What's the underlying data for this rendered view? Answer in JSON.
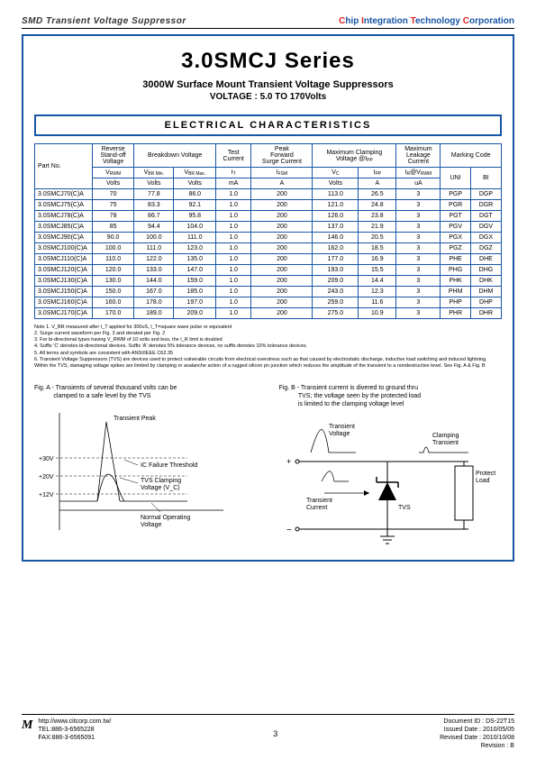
{
  "header": {
    "left": "SMD Transient Voltage Suppressor",
    "right": {
      "c": "C",
      "hip": "hip ",
      "i": "I",
      "ntegration": "ntegration ",
      "t": "T",
      "echnology": "echnology ",
      "c2": "C",
      "orporation": "orporation"
    }
  },
  "title": "3.0SMCJ Series",
  "subtitle": "3000W Surface Mount Transient Voltage Suppressors",
  "subtitle2": "VOLTAGE : 5.0 TO 170Volts",
  "section": "ELECTRICAL CHARACTERISTICS",
  "table": {
    "colgroup1": [
      "Part No.",
      "Reverse\nStand-off\nVoltage",
      "Breakdown Voltage",
      "Test\nCurrent",
      "Peak\nForward\nSurge Current",
      "Maximum Clamping\nVoltage @I",
      "Maximum\nLeakage\nCurrent",
      "Marking Code"
    ],
    "colsym": [
      "V",
      "V",
      "V",
      "I",
      "I",
      "V",
      "I",
      "I",
      "",
      ""
    ],
    "colsub": [
      "RWM",
      "BR Min.",
      "BR Max.",
      "T",
      "FSM",
      "C",
      "PP",
      "R",
      "",
      ""
    ],
    "colext": [
      "",
      "",
      "",
      "",
      "",
      "",
      "",
      "@V",
      "",
      " "
    ],
    "colunit": [
      "Volts",
      "Volts",
      "Volts",
      "mA",
      "A",
      "Volts",
      "A",
      "uA",
      "UNI",
      "BI"
    ],
    "rows": [
      [
        "3.0SMCJ70(C)A",
        "70",
        "77.8",
        "86.0",
        "1.0",
        "200",
        "113.0",
        "26.5",
        "3",
        "PGP",
        "DGP"
      ],
      [
        "3.0SMCJ75(C)A",
        "75",
        "83.3",
        "92.1",
        "1.0",
        "200",
        "121.0",
        "24.8",
        "3",
        "PGR",
        "DGR"
      ],
      [
        "3.0SMCJ78(C)A",
        "78",
        "86.7",
        "95.8",
        "1.0",
        "200",
        "126.0",
        "23.8",
        "3",
        "PGT",
        "DGT"
      ],
      [
        "3.0SMCJ85(C)A",
        "85",
        "94.4",
        "104.0",
        "1.0",
        "200",
        "137.0",
        "21.9",
        "3",
        "PGV",
        "DGV"
      ],
      [
        "3.0SMCJ90(C)A",
        "90.0",
        "100.0",
        "111.0",
        "1.0",
        "200",
        "146.0",
        "20.5",
        "3",
        "PGX",
        "DGX"
      ],
      [
        "3.0SMCJ100(C)A",
        "100.0",
        "111.0",
        "123.0",
        "1.0",
        "200",
        "162.0",
        "18.5",
        "3",
        "PGZ",
        "DGZ"
      ],
      [
        "3.0SMCJ110(C)A",
        "110.0",
        "122.0",
        "135.0",
        "1.0",
        "200",
        "177.0",
        "16.9",
        "3",
        "PHE",
        "DHE"
      ],
      [
        "3.0SMCJ120(C)A",
        "120.0",
        "133.0",
        "147.0",
        "1.0",
        "200",
        "193.0",
        "15.5",
        "3",
        "PHG",
        "DHG"
      ],
      [
        "3.0SMCJ130(C)A",
        "130.0",
        "144.0",
        "159.0",
        "1.0",
        "200",
        "209.0",
        "14.4",
        "3",
        "PHK",
        "DHK"
      ],
      [
        "3.0SMCJ150(C)A",
        "150.0",
        "167.0",
        "185.0",
        "1.0",
        "200",
        "243.0",
        "12.3",
        "3",
        "PHM",
        "DHM"
      ],
      [
        "3.0SMCJ160(C)A",
        "160.0",
        "178.0",
        "197.0",
        "1.0",
        "200",
        "259.0",
        "11.6",
        "3",
        "PHP",
        "DHP"
      ],
      [
        "3.0SMCJ170(C)A",
        "170.0",
        "189.0",
        "209.0",
        "1.0",
        "200",
        "275.0",
        "10.9",
        "3",
        "PHR",
        "DHR"
      ]
    ]
  },
  "notes": [
    "Note 1. V_BR measured after I_T applied for 300uS, I_T=square wave pulse or equivalent",
    "2. Surge current waveform per Fig. 3 and derated per Fig. 2",
    "3. For bi-directional types having V_RWM of 10 volts and less, the I_R limit is doubled",
    "4. Suffix 'C' denotes bi-directional devices. Suffix 'A' denotes 5% tolerance devices, no suffix denotes 10% tolerance devices.",
    "5. All terms and symbols are consistent with ANSI/IEEE C62.35",
    "6. Transient Voltage Suppressors (TVS) are devices used to protect vulnerable circuits from electrical overstress such as that caused by electrostatic discharge, inductive load switching and induced lightning. Within the TVS, damaging voltage spikes are limited by clamping or avalanche action of a rugged silicon pn junction which reduces the amplitude of the transient to a nondestructive level. See Fig. A & Fig. B"
  ],
  "figA": {
    "caption": "Fig. A - Transients of several thousand volts can be\nclamped to a safe level by the TVS",
    "labels": {
      "peak": "Transient Peak",
      "threshold": "IC Failure Threshold",
      "clamp": "TVS Clamping\nVoltage (V_C)",
      "normal": "Normal Operating\nVoltage",
      "y30": "+30V",
      "y20": "+20V",
      "y12": "+12V"
    }
  },
  "figB": {
    "caption": "Fig. B - Transient current is divered to ground thru\nTVS; the voltage seen by the protected load\nis limited to the clamping voltage level",
    "labels": {
      "tv": "Transient\nVoltage",
      "ct": "Clamping\nTransient",
      "tc": "Transient\nCurrent",
      "tvs": "TVS",
      "load": "Protected\nLoad",
      "plus": "+",
      "minus": "−"
    }
  },
  "footer": {
    "url": "http://www.citcorp.com.tw/",
    "tel": "TEL:886-3-6565228",
    "fax": "FAX:886-3-6565091",
    "page": "3",
    "docid": "Document ID : DS-22T15",
    "issued": "Issued Date : 2010/05/05",
    "revised": "Revised Date : 2010/10/08",
    "rev": "Revision : B"
  },
  "colors": {
    "border": "#1756a6",
    "red": "#d22"
  }
}
